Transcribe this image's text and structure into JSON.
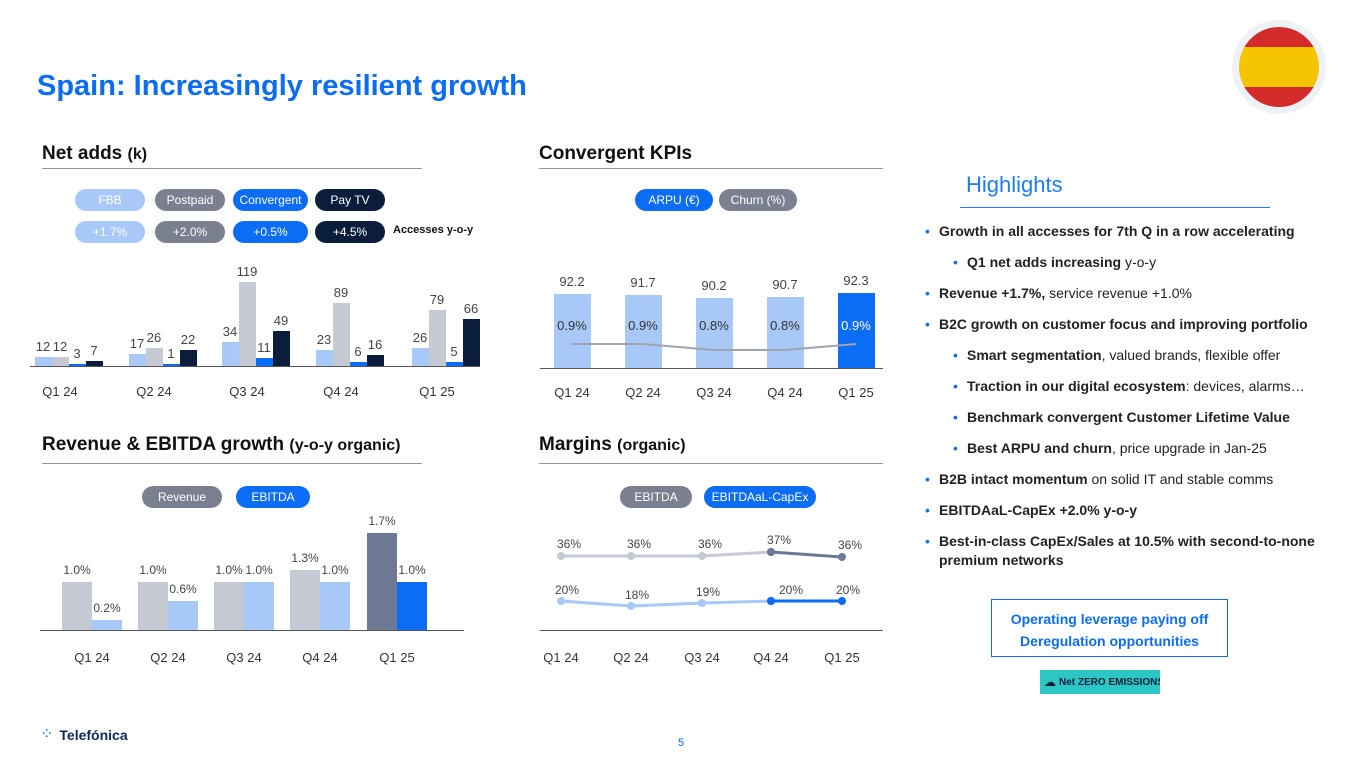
{
  "title": "Spain: Increasingly resilient growth",
  "page_number": "5",
  "brand": "Telefónica",
  "netzero_badge": "Net ZERO EMISSIONS",
  "colors": {
    "fbb": "#a8c8f8",
    "postpaid": "#c5c9d3",
    "convergent": "#0b6cf5",
    "paytv": "#0a1e3c",
    "accent": "#0b6cf5"
  },
  "net_adds": {
    "title": "Net adds",
    "unit": "(k)",
    "legend": [
      "FBB",
      "Postpaid",
      "Convergent",
      "Pay TV"
    ],
    "yoy": [
      "+1.7%",
      "+2.0%",
      "+0.5%",
      "+4.5%"
    ],
    "yoy_label": "Accesses y-o-y"
  },
  "convergent": {
    "title": "Convergent KPIs",
    "legend": [
      "ARPU (€)",
      "Churn (%)"
    ]
  },
  "revenue": {
    "title": "Revenue & EBITDA growth",
    "subtitle": "(y-o-y organic)",
    "legend": [
      "Revenue",
      "EBITDA"
    ]
  },
  "margins": {
    "title": "Margins",
    "subtitle": "(organic)",
    "legend": [
      "EBITDA",
      "EBITDAaL-CapEx"
    ]
  },
  "chart_data": [
    {
      "type": "bar",
      "title": "Net adds (k)",
      "categories": [
        "Q1 24",
        "Q2 24",
        "Q3 24",
        "Q4 24",
        "Q1 25"
      ],
      "series": [
        {
          "name": "FBB",
          "values": [
            12,
            17,
            34,
            23,
            26
          ]
        },
        {
          "name": "Postpaid",
          "values": [
            12,
            26,
            119,
            89,
            79
          ]
        },
        {
          "name": "Convergent",
          "values": [
            3,
            1,
            11,
            6,
            5
          ]
        },
        {
          "name": "Pay TV",
          "values": [
            7,
            22,
            49,
            16,
            66
          ]
        }
      ]
    },
    {
      "type": "bar",
      "title": "Convergent KPIs",
      "categories": [
        "Q1 24",
        "Q2 24",
        "Q3 24",
        "Q4 24",
        "Q1 25"
      ],
      "series": [
        {
          "name": "ARPU (€)",
          "values": [
            92.2,
            91.7,
            90.2,
            90.7,
            92.3
          ]
        },
        {
          "name": "Churn (%)",
          "values": [
            0.9,
            0.9,
            0.8,
            0.8,
            0.9
          ],
          "labels": [
            "0.9%",
            "0.9%",
            "0.8%",
            "0.8%",
            "0.9%"
          ]
        }
      ]
    },
    {
      "type": "bar",
      "title": "Revenue & EBITDA growth (y-o-y organic)",
      "categories": [
        "Q1 24",
        "Q2 24",
        "Q3 24",
        "Q4 24",
        "Q1 25"
      ],
      "series": [
        {
          "name": "Revenue",
          "values": [
            1.0,
            1.0,
            1.0,
            1.3,
            1.7
          ],
          "labels": [
            "1.0%",
            "1.0%",
            "1.0%",
            "1.3%",
            "1.7%"
          ]
        },
        {
          "name": "EBITDA",
          "values": [
            0.2,
            0.6,
            1.0,
            1.0,
            1.0
          ],
          "labels": [
            "0.2%",
            "0.6%",
            "1.0%",
            "1.0%",
            "1.0%"
          ]
        }
      ]
    },
    {
      "type": "line",
      "title": "Margins (organic)",
      "categories": [
        "Q1 24",
        "Q2 24",
        "Q3 24",
        "Q4 24",
        "Q1 25"
      ],
      "series": [
        {
          "name": "EBITDA",
          "values": [
            36,
            36,
            36,
            37,
            36
          ],
          "labels": [
            "36%",
            "36%",
            "36%",
            "37%",
            "36%"
          ]
        },
        {
          "name": "EBITDAaL-CapEx",
          "values": [
            20,
            18,
            19,
            20,
            20
          ],
          "labels": [
            "20%",
            "18%",
            "19%",
            "20%",
            "20%"
          ]
        }
      ]
    }
  ],
  "highlights": {
    "title": "Highlights",
    "items": [
      {
        "bold": "Growth in all accesses for 7th Q in a row accelerating",
        "rest": "",
        "sub": false
      },
      {
        "bold": "Q1 net adds increasing",
        "rest": " y-o-y",
        "sub": true
      },
      {
        "bold": "Revenue +1.7%,",
        "rest": " service revenue +1.0%",
        "sub": false
      },
      {
        "bold": "B2C growth on customer focus and improving portfolio",
        "rest": "",
        "sub": false
      },
      {
        "bold": "Smart segmentation",
        "rest": ", valued brands, flexible offer",
        "sub": true
      },
      {
        "bold": "Traction in our digital ecosystem",
        "rest": ": devices, alarms…",
        "sub": true
      },
      {
        "bold": "Benchmark convergent Customer Lifetime Value",
        "rest": "",
        "sub": true
      },
      {
        "bold": "Best ARPU and churn",
        "rest": ", price upgrade in Jan-25",
        "sub": true
      },
      {
        "bold": "B2B intact momentum",
        "rest": " on solid IT and stable comms",
        "sub": false
      },
      {
        "bold": "EBITDAaL-CapEx +2.0% y-o-y",
        "rest": "",
        "sub": false
      },
      {
        "bold": "Best-in-class CapEx/Sales at 10.5% with second-to-none premium networks",
        "rest": "",
        "sub": false
      }
    ],
    "box": [
      "Operating leverage paying off",
      "Deregulation opportunities"
    ]
  }
}
